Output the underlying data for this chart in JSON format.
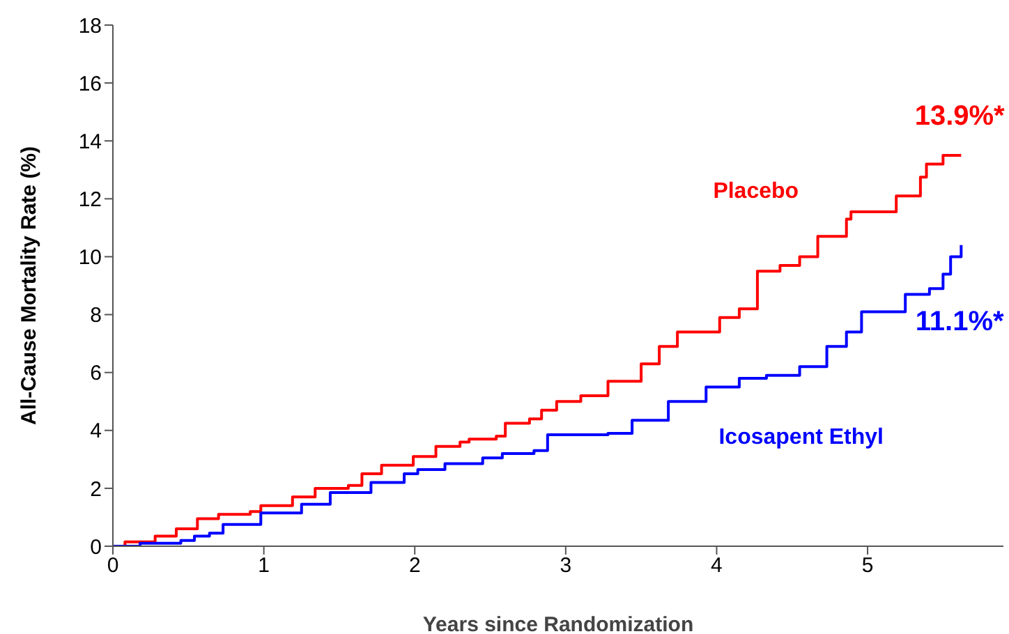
{
  "chart_data": {
    "type": "step",
    "xlabel": "Years since Randomization",
    "ylabel": "All-Cause Mortality Rate (%)",
    "xlim": [
      0,
      5.9
    ],
    "xticks": [
      0,
      1,
      2,
      3,
      4,
      5
    ],
    "ylim": [
      0,
      18
    ],
    "yticks": [
      0,
      2,
      4,
      6,
      8,
      10,
      12,
      14,
      16,
      18
    ],
    "grid": false,
    "marker": "none",
    "line_style": "solid",
    "series": [
      {
        "name": "Placebo",
        "color": "#ff0000",
        "x": [
          0,
          0.08,
          0.28,
          0.42,
          0.56,
          0.7,
          0.91,
          0.98,
          1.19,
          1.34,
          1.56,
          1.65,
          1.78,
          1.99,
          2.14,
          2.3,
          2.36,
          2.54,
          2.6,
          2.76,
          2.84,
          2.94,
          3.1,
          3.28,
          3.5,
          3.62,
          3.74,
          3.93,
          4.02,
          4.15,
          4.27,
          4.42,
          4.55,
          4.67,
          4.86,
          4.89,
          5.07,
          5.19,
          5.35,
          5.39,
          5.5,
          5.62
        ],
        "values": [
          0,
          0.15,
          0.35,
          0.6,
          0.95,
          1.1,
          1.2,
          1.4,
          1.7,
          2.0,
          2.1,
          2.5,
          2.8,
          3.1,
          3.45,
          3.6,
          3.7,
          3.8,
          4.25,
          4.4,
          4.7,
          5.0,
          5.2,
          5.7,
          6.3,
          6.9,
          7.4,
          7.4,
          7.9,
          8.2,
          9.5,
          9.7,
          10.0,
          10.7,
          11.3,
          11.55,
          11.55,
          12.1,
          12.75,
          13.2,
          13.5,
          13.5
        ]
      },
      {
        "name": "Icosapent Ethyl",
        "color": "#0000ff",
        "x": [
          0,
          0.18,
          0.45,
          0.54,
          0.64,
          0.73,
          0.98,
          1.25,
          1.44,
          1.65,
          1.71,
          1.93,
          2.02,
          2.2,
          2.33,
          2.45,
          2.58,
          2.79,
          2.88,
          3.28,
          3.44,
          3.68,
          3.93,
          4.15,
          4.33,
          4.55,
          4.73,
          4.86,
          4.96,
          5.13,
          5.25,
          5.41,
          5.5,
          5.55,
          5.62
        ],
        "values": [
          0,
          0.1,
          0.2,
          0.35,
          0.45,
          0.75,
          1.15,
          1.45,
          1.85,
          1.85,
          2.2,
          2.5,
          2.65,
          2.85,
          2.85,
          3.05,
          3.2,
          3.3,
          3.85,
          3.9,
          4.35,
          5.0,
          5.5,
          5.8,
          5.9,
          6.2,
          6.9,
          7.4,
          8.1,
          8.1,
          8.7,
          8.9,
          9.4,
          10.0,
          10.4
        ]
      }
    ],
    "annotations": [
      "13.9%*",
      "11.1%*"
    ]
  }
}
